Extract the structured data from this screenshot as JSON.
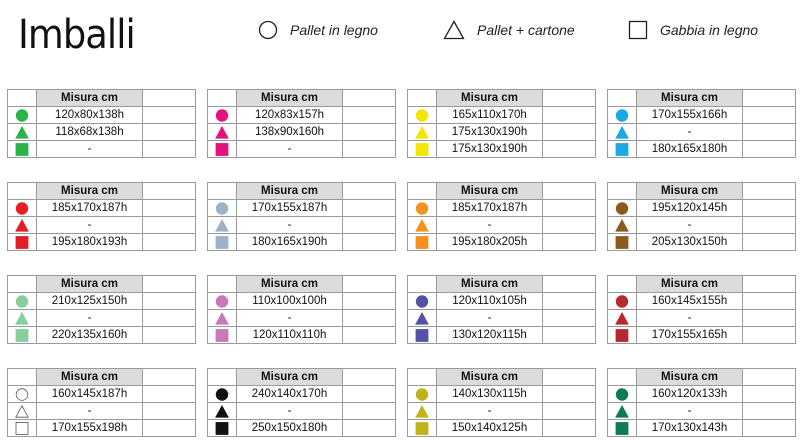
{
  "title": "Imballi",
  "legend": [
    {
      "shape": "circle",
      "label": "Pallet in legno"
    },
    {
      "shape": "triangle",
      "label": "Pallet + cartone"
    },
    {
      "shape": "square",
      "label": "Gabbia in legno"
    }
  ],
  "header_label": "Misura cm",
  "colors": {
    "green": "#2db24a",
    "magenta": "#e2127f",
    "yellow": "#f2e600",
    "cyan": "#1ba8e3",
    "red": "#e31e24",
    "steel": "#9db2c8",
    "orange": "#f5921e",
    "brown": "#8b5a1e",
    "mint": "#86cf9e",
    "orchid": "#c979b5",
    "indigo": "#5452a4",
    "crimson": "#b42a30",
    "white": "#ffffff",
    "black": "#111111",
    "olive": "#c0b31a",
    "teal": "#0f7a5a"
  },
  "tables": [
    {
      "color": "#2db24a",
      "rows": [
        "120x80x138h",
        "118x68x138h",
        "-"
      ]
    },
    {
      "color": "#e2127f",
      "rows": [
        "120x83x157h",
        "138x90x160h",
        "-"
      ]
    },
    {
      "color": "#f2e600",
      "rows": [
        "165x110x170h",
        "175x130x190h",
        "175x130x190h"
      ]
    },
    {
      "color": "#1ba8e3",
      "rows": [
        "170x155x166h",
        "-",
        "180x165x180h"
      ]
    },
    {
      "color": "#e31e24",
      "rows": [
        "185x170x187h",
        "-",
        "195x180x193h"
      ]
    },
    {
      "color": "#9db2c8",
      "rows": [
        "170x155x187h",
        "-",
        "180x165x190h"
      ]
    },
    {
      "color": "#f5921e",
      "rows": [
        "185x170x187h",
        "-",
        "195x180x205h"
      ]
    },
    {
      "color": "#8b5a1e",
      "rows": [
        "195x120x145h",
        "-",
        "205x130x150h"
      ]
    },
    {
      "color": "#86cf9e",
      "rows": [
        "210x125x150h",
        "-",
        "220x135x160h"
      ]
    },
    {
      "color": "#c979b5",
      "rows": [
        "110x100x100h",
        "-",
        "120x110x110h"
      ]
    },
    {
      "color": "#5452a4",
      "rows": [
        "120x110x105h",
        "-",
        "130x120x115h"
      ]
    },
    {
      "color": "#b42a30",
      "rows": [
        "160x145x155h",
        "-",
        "170x155x165h"
      ]
    },
    {
      "color": "#ffffff",
      "rows": [
        "160x145x187h",
        "-",
        "170x155x198h"
      ]
    },
    {
      "color": "#111111",
      "rows": [
        "240x140x170h",
        "-",
        "250x150x180h"
      ]
    },
    {
      "color": "#c0b31a",
      "rows": [
        "140x130x115h",
        "-",
        "150x140x125h"
      ]
    },
    {
      "color": "#0f7a5a",
      "rows": [
        "160x120x133h",
        "-",
        "170x130x143h"
      ]
    }
  ]
}
